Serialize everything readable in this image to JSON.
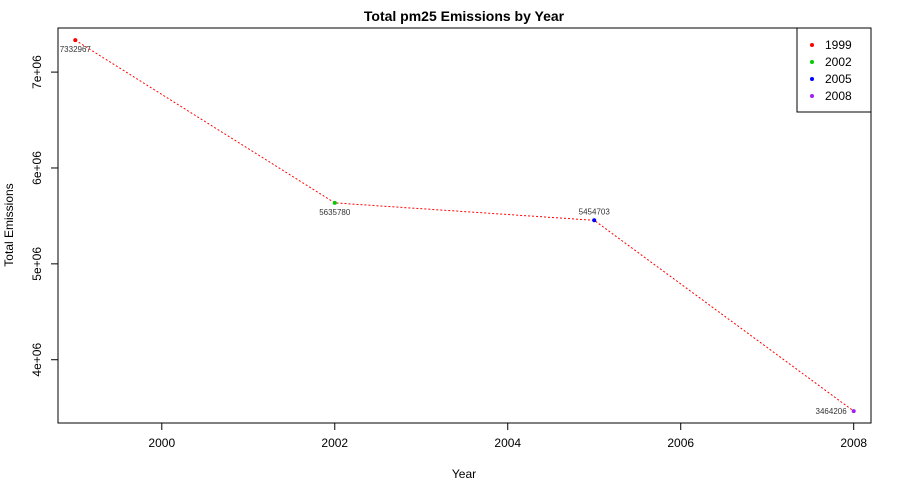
{
  "chart_data": {
    "type": "line",
    "title": "Total pm25 Emissions by Year",
    "xlabel": "Year",
    "ylabel": "Total Emissions",
    "x": [
      1999,
      2002,
      2005,
      2008
    ],
    "values": [
      7332967,
      5635780,
      5454703,
      3464206
    ],
    "data_labels": [
      "7332967",
      "5635780",
      "5454703",
      "3464206"
    ],
    "point_colors": [
      "#FF0000",
      "#00CD00",
      "#0000FF",
      "#A020F0"
    ],
    "line_color": "#FF0000",
    "line_style": "dotted",
    "xlim": [
      1998.8,
      2008.2
    ],
    "ylim": [
      3340000,
      7460000
    ],
    "x_ticks": [
      2000,
      2002,
      2004,
      2006,
      2008
    ],
    "x_tick_labels": [
      "2000",
      "2002",
      "2004",
      "2006",
      "2008"
    ],
    "y_ticks": [
      4000000,
      5000000,
      6000000,
      7000000
    ],
    "y_tick_labels": [
      "4e+06",
      "5e+06",
      "6e+06",
      "7e+06"
    ],
    "legend": {
      "position": "top-right",
      "entries": [
        {
          "label": "1999",
          "color": "#FF0000"
        },
        {
          "label": "2002",
          "color": "#00CD00"
        },
        {
          "label": "2005",
          "color": "#0000FF"
        },
        {
          "label": "2008",
          "color": "#A020F0"
        }
      ]
    },
    "grid": false
  }
}
